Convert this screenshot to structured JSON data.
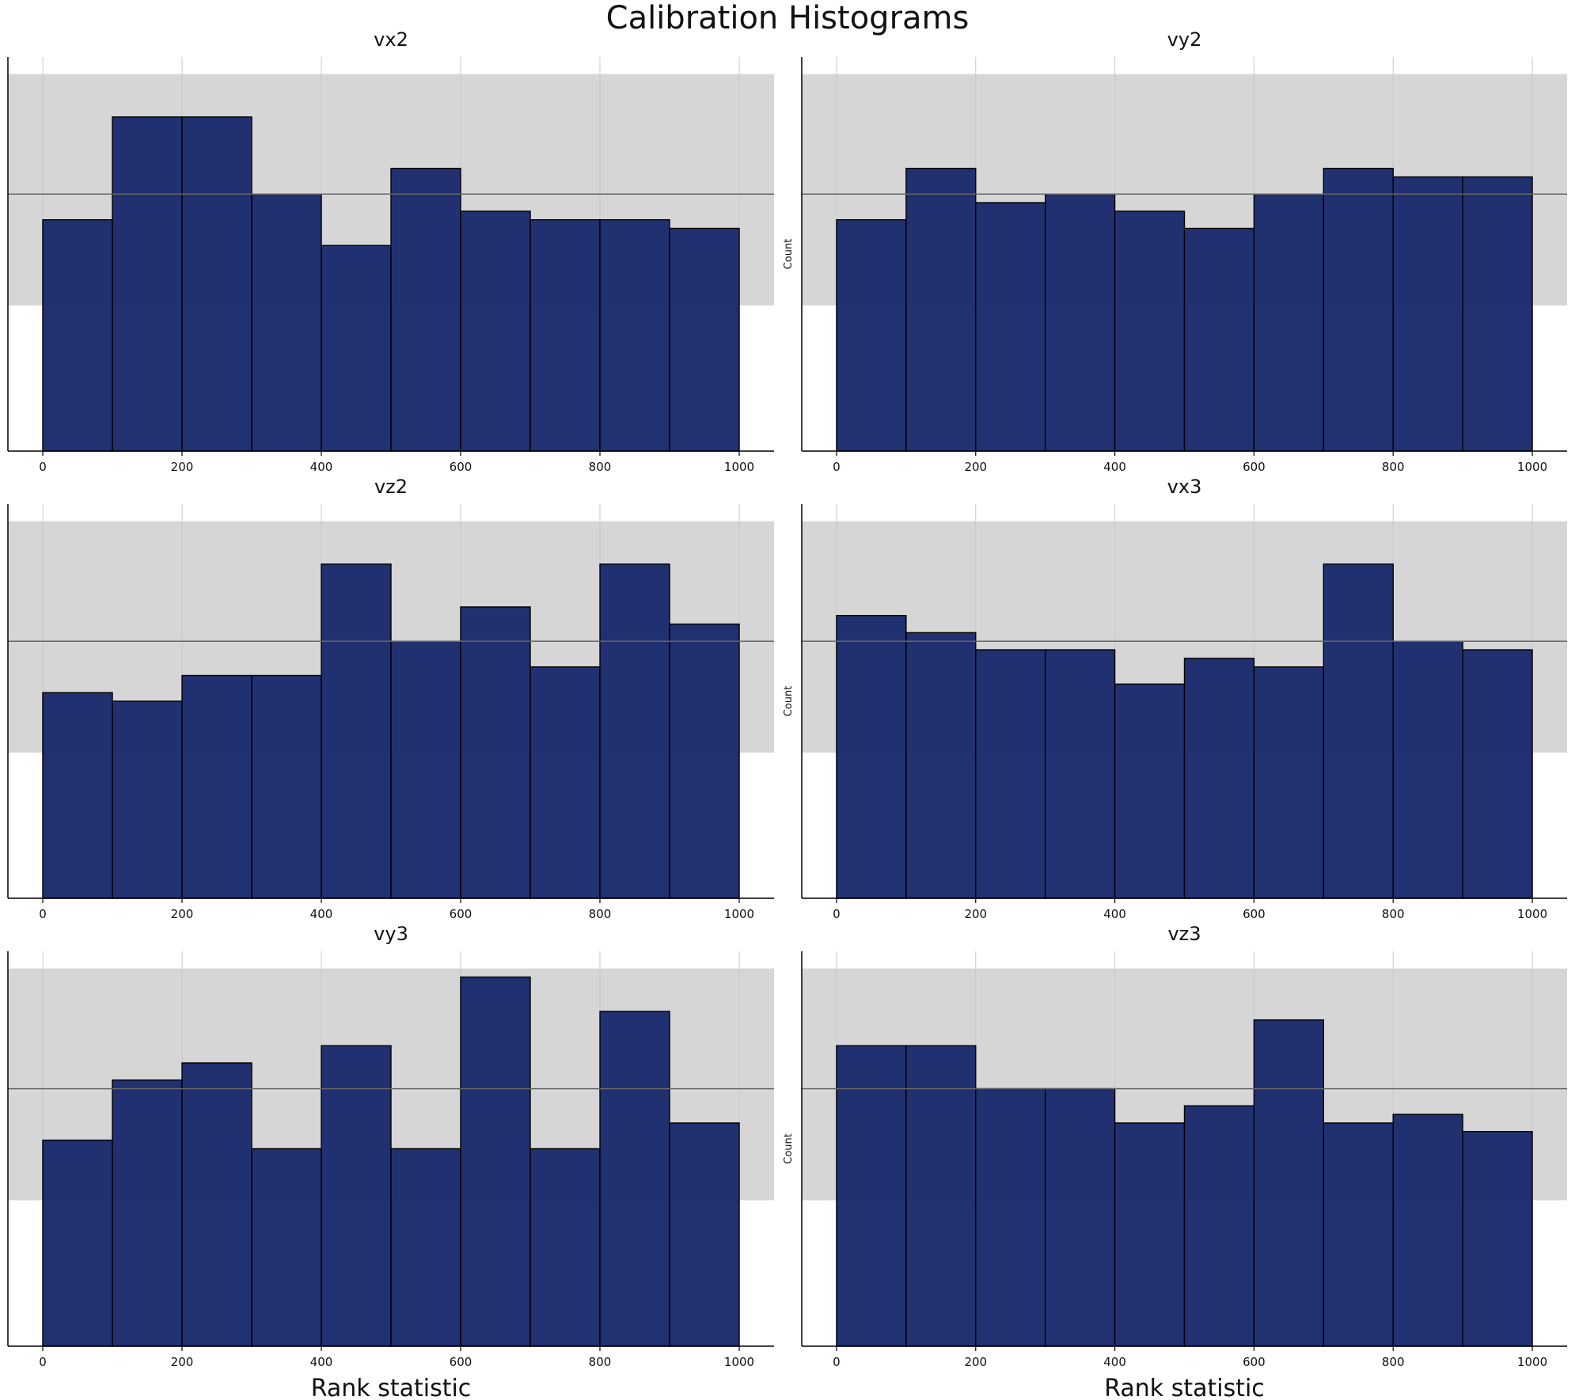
{
  "figure": {
    "title": "Calibration Histograms"
  },
  "colors": {
    "bar": "#1a2a6c",
    "band": "#d6d6d6",
    "mean_line": "#666666",
    "grid": "#c8c8c8"
  },
  "chart_data": [
    {
      "type": "bar",
      "title": "vx2",
      "xlabel": "",
      "ylabel": "",
      "bin_edges": [
        0,
        100,
        200,
        300,
        400,
        500,
        600,
        700,
        800,
        900,
        1000
      ],
      "values": [
        27,
        39,
        39,
        30,
        24,
        33,
        28,
        27,
        27,
        26
      ],
      "mean": 30,
      "band": [
        17,
        44
      ],
      "ylim": [
        0,
        46
      ],
      "xticks": [
        0,
        200,
        400,
        600,
        800,
        1000
      ]
    },
    {
      "type": "bar",
      "title": "vy2",
      "xlabel": "",
      "ylabel": "Count",
      "bin_edges": [
        0,
        100,
        200,
        300,
        400,
        500,
        600,
        700,
        800,
        900,
        1000
      ],
      "values": [
        27,
        33,
        29,
        30,
        28,
        26,
        30,
        33,
        32,
        32
      ],
      "mean": 30,
      "band": [
        17,
        44
      ],
      "ylim": [
        0,
        46
      ],
      "xticks": [
        0,
        200,
        400,
        600,
        800,
        1000
      ]
    },
    {
      "type": "bar",
      "title": "vz2",
      "xlabel": "",
      "ylabel": "",
      "bin_edges": [
        0,
        100,
        200,
        300,
        400,
        500,
        600,
        700,
        800,
        900,
        1000
      ],
      "values": [
        24,
        23,
        26,
        26,
        39,
        30,
        34,
        27,
        39,
        32
      ],
      "mean": 30,
      "band": [
        17,
        44
      ],
      "ylim": [
        0,
        46
      ],
      "xticks": [
        0,
        200,
        400,
        600,
        800,
        1000
      ]
    },
    {
      "type": "bar",
      "title": "vx3",
      "xlabel": "",
      "ylabel": "Count",
      "bin_edges": [
        0,
        100,
        200,
        300,
        400,
        500,
        600,
        700,
        800,
        900,
        1000
      ],
      "values": [
        33,
        31,
        29,
        29,
        25,
        28,
        27,
        39,
        30,
        29
      ],
      "mean": 30,
      "band": [
        17,
        44
      ],
      "ylim": [
        0,
        46
      ],
      "xticks": [
        0,
        200,
        400,
        600,
        800,
        1000
      ]
    },
    {
      "type": "bar",
      "title": "vy3",
      "xlabel": "Rank statistic",
      "ylabel": "",
      "bin_edges": [
        0,
        100,
        200,
        300,
        400,
        500,
        600,
        700,
        800,
        900,
        1000
      ],
      "values": [
        24,
        31,
        33,
        23,
        35,
        23,
        43,
        23,
        39,
        26
      ],
      "mean": 30,
      "band": [
        17,
        44
      ],
      "ylim": [
        0,
        46
      ],
      "xticks": [
        0,
        200,
        400,
        600,
        800,
        1000
      ]
    },
    {
      "type": "bar",
      "title": "vz3",
      "xlabel": "Rank statistic",
      "ylabel": "Count",
      "bin_edges": [
        0,
        100,
        200,
        300,
        400,
        500,
        600,
        700,
        800,
        900,
        1000
      ],
      "values": [
        35,
        35,
        30,
        30,
        26,
        28,
        38,
        26,
        27,
        25
      ],
      "mean": 30,
      "band": [
        17,
        44
      ],
      "ylim": [
        0,
        46
      ],
      "xticks": [
        0,
        200,
        400,
        600,
        800,
        1000
      ]
    }
  ]
}
